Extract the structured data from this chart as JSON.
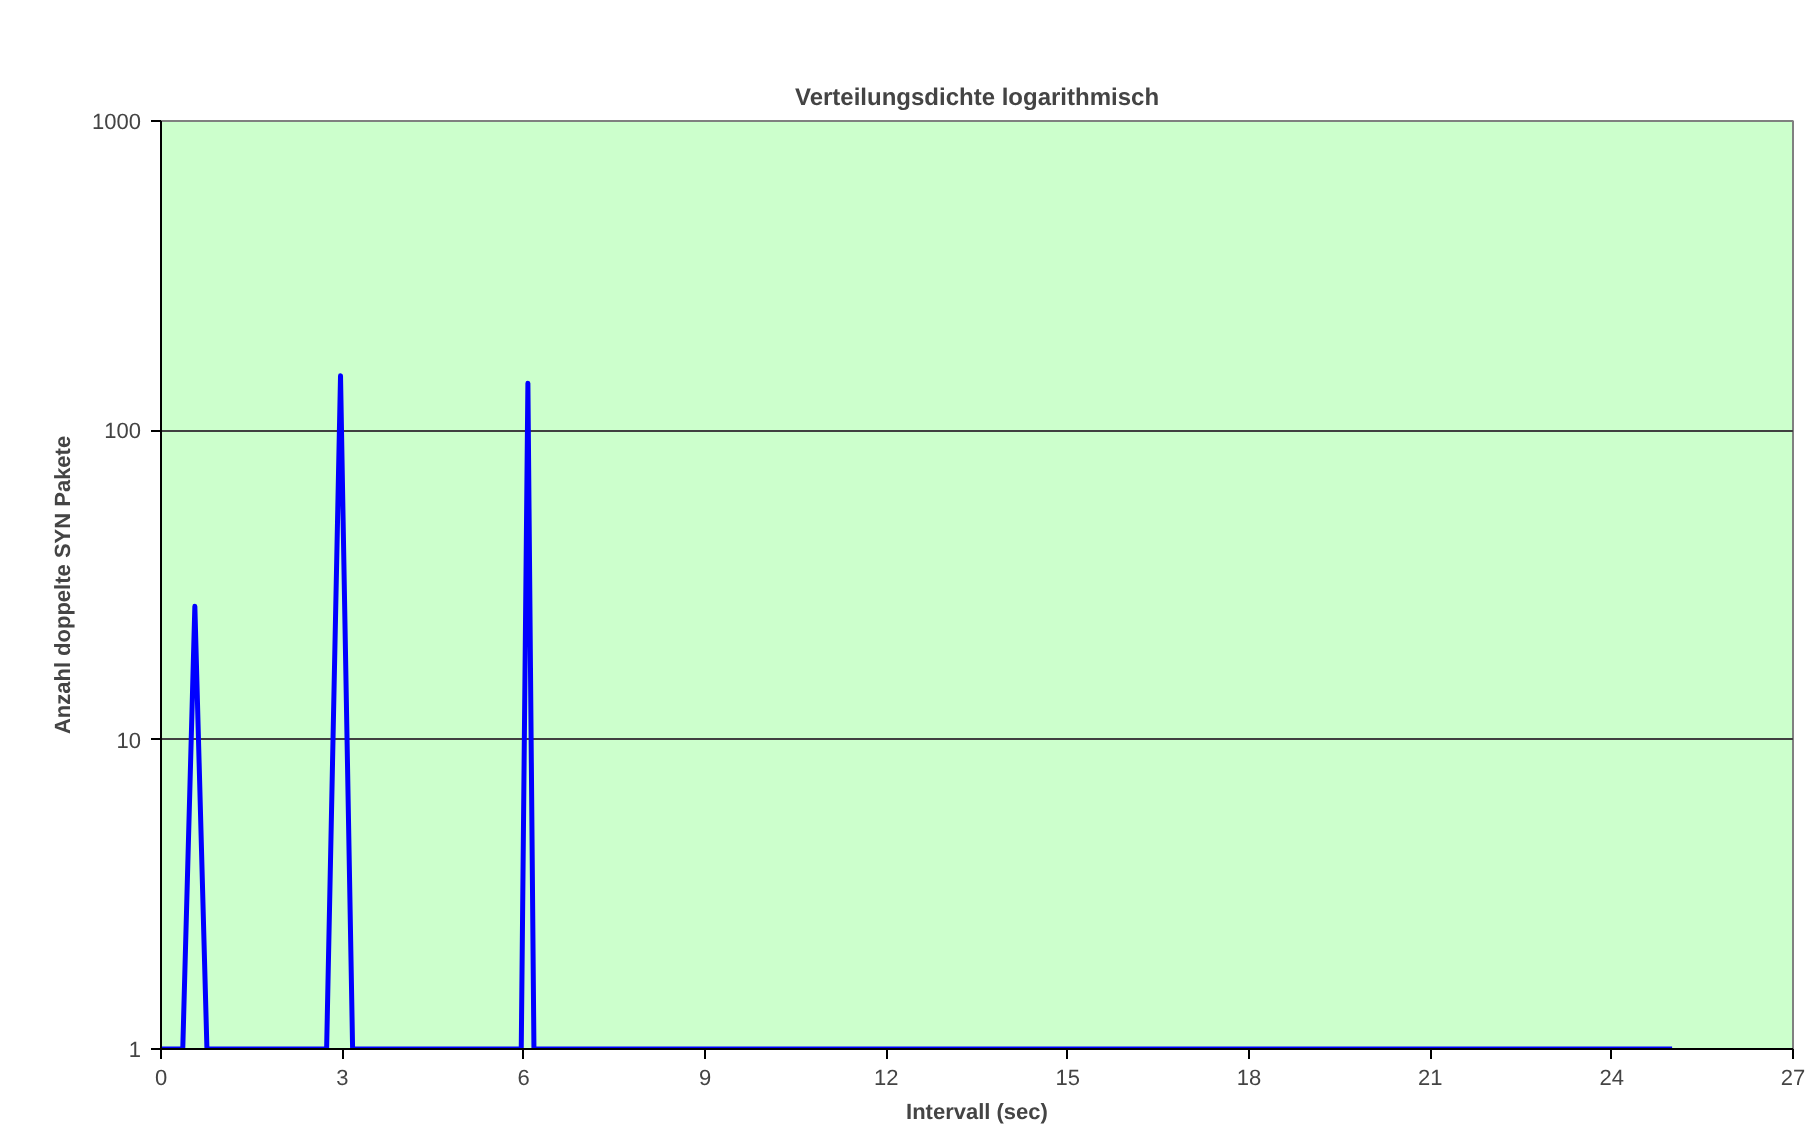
{
  "chart_data": {
    "type": "line",
    "title": "Verteilungsdichte logarithmisch",
    "xlabel": "Intervall (sec)",
    "ylabel": "Anzahl doppelte SYN Pakete",
    "x": [
      0,
      0.36,
      0.56,
      0.76,
      2.74,
      2.97,
      3.17,
      5.96,
      6.07,
      6.17,
      25
    ],
    "series": [
      {
        "color": "#0000ff",
        "values": [
          1,
          1,
          27,
          1,
          1,
          150,
          1,
          1,
          142,
          1,
          1
        ]
      }
    ],
    "log": true,
    "xlim": [
      0,
      27
    ],
    "xticks": [
      0,
      3,
      6,
      9,
      12,
      15,
      18,
      21,
      24,
      27
    ],
    "ylim": [
      1,
      1000
    ],
    "yticks": [
      1,
      10,
      100,
      1000
    ],
    "grid": "y",
    "marker": "none",
    "line_style": "solid"
  }
}
